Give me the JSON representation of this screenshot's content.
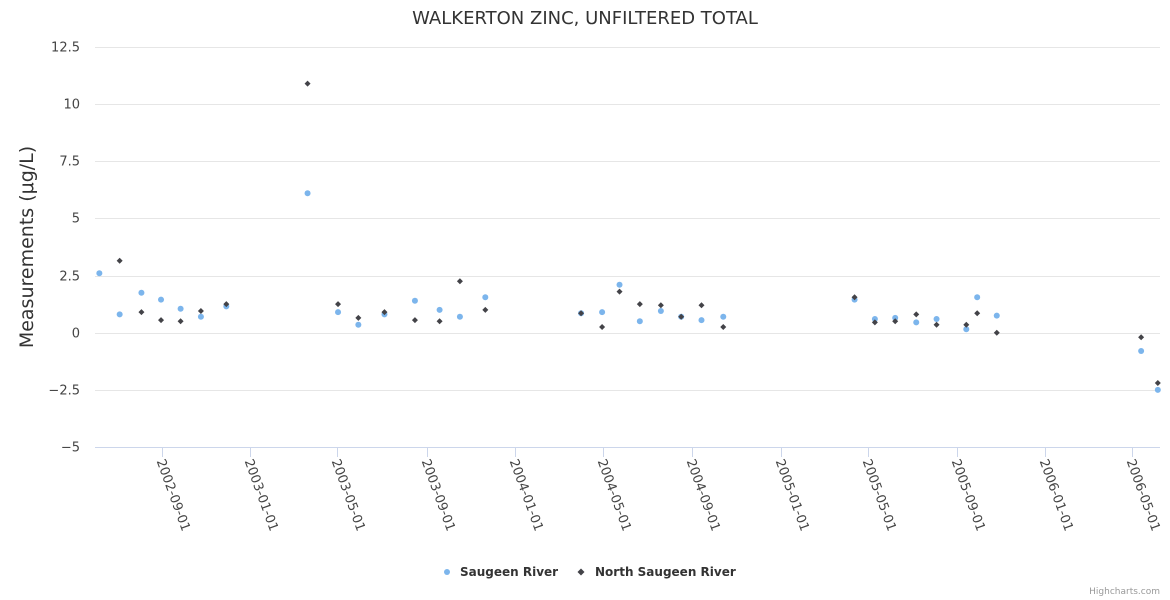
{
  "chart_data": {
    "type": "scatter",
    "title": "WALKERTON ZINC, UNFILTERED TOTAL",
    "ylabel": "Measurements (μg/L)",
    "xlabel": "",
    "ylim": [
      -5,
      12.5
    ],
    "yticks": [
      -5,
      -2.5,
      0,
      2.5,
      5,
      7.5,
      10,
      12.5
    ],
    "ytick_labels": [
      "−5",
      "−2.5",
      "0",
      "2.5",
      "5",
      "7.5",
      "10",
      "12.5"
    ],
    "xlim": [
      "2002-06-01",
      "2006-06-08"
    ],
    "xticks": [
      "2002-09-01",
      "2003-01-01",
      "2003-05-01",
      "2003-09-01",
      "2004-01-01",
      "2004-05-01",
      "2004-09-01",
      "2005-01-01",
      "2005-05-01",
      "2005-09-01",
      "2006-01-01",
      "2006-05-01"
    ],
    "grid": true,
    "legend_position": "bottom-center",
    "series": [
      {
        "name": "Saugeen River",
        "color": "#7cb5ec",
        "marker": "circle",
        "points": [
          {
            "x": "2002-06-07",
            "y": 2.6
          },
          {
            "x": "2002-07-05",
            "y": 0.8
          },
          {
            "x": "2002-08-04",
            "y": 1.75
          },
          {
            "x": "2002-08-31",
            "y": 1.45
          },
          {
            "x": "2002-09-27",
            "y": 1.05
          },
          {
            "x": "2002-10-25",
            "y": 0.7
          },
          {
            "x": "2002-11-29",
            "y": 1.15
          },
          {
            "x": "2003-03-21",
            "y": 6.1
          },
          {
            "x": "2003-05-02",
            "y": 0.9
          },
          {
            "x": "2003-05-30",
            "y": 0.35
          },
          {
            "x": "2003-07-05",
            "y": 0.8
          },
          {
            "x": "2003-08-16",
            "y": 1.4
          },
          {
            "x": "2003-09-19",
            "y": 1.0
          },
          {
            "x": "2003-10-17",
            "y": 0.7
          },
          {
            "x": "2003-11-21",
            "y": 1.55
          },
          {
            "x": "2004-04-01",
            "y": 0.85
          },
          {
            "x": "2004-04-30",
            "y": 0.9
          },
          {
            "x": "2004-05-24",
            "y": 2.1
          },
          {
            "x": "2004-06-21",
            "y": 0.5
          },
          {
            "x": "2004-07-20",
            "y": 0.95
          },
          {
            "x": "2004-08-17",
            "y": 0.7
          },
          {
            "x": "2004-09-14",
            "y": 0.55
          },
          {
            "x": "2004-10-14",
            "y": 0.7
          },
          {
            "x": "2005-04-13",
            "y": 1.45
          },
          {
            "x": "2005-05-11",
            "y": 0.6
          },
          {
            "x": "2005-06-08",
            "y": 0.65
          },
          {
            "x": "2005-07-07",
            "y": 0.45
          },
          {
            "x": "2005-08-04",
            "y": 0.6
          },
          {
            "x": "2005-09-14",
            "y": 0.15
          },
          {
            "x": "2005-09-29",
            "y": 1.55
          },
          {
            "x": "2005-10-26",
            "y": 0.75
          },
          {
            "x": "2006-05-13",
            "y": -0.8
          },
          {
            "x": "2006-06-05",
            "y": -2.5
          }
        ]
      },
      {
        "name": "North Saugeen River",
        "color": "#434348",
        "marker": "diamond",
        "points": [
          {
            "x": "2002-07-05",
            "y": 3.15
          },
          {
            "x": "2002-08-04",
            "y": 0.9
          },
          {
            "x": "2002-08-31",
            "y": 0.55
          },
          {
            "x": "2002-09-27",
            "y": 0.5
          },
          {
            "x": "2002-10-25",
            "y": 0.95
          },
          {
            "x": "2002-11-29",
            "y": 1.25
          },
          {
            "x": "2003-03-21",
            "y": 10.9
          },
          {
            "x": "2003-05-02",
            "y": 1.25
          },
          {
            "x": "2003-05-30",
            "y": 0.65
          },
          {
            "x": "2003-07-05",
            "y": 0.9
          },
          {
            "x": "2003-08-16",
            "y": 0.55
          },
          {
            "x": "2003-09-19",
            "y": 0.5
          },
          {
            "x": "2003-10-17",
            "y": 2.25
          },
          {
            "x": "2003-11-21",
            "y": 1.0
          },
          {
            "x": "2004-04-01",
            "y": 0.85
          },
          {
            "x": "2004-04-30",
            "y": 0.25
          },
          {
            "x": "2004-05-24",
            "y": 1.8
          },
          {
            "x": "2004-06-21",
            "y": 1.25
          },
          {
            "x": "2004-07-20",
            "y": 1.2
          },
          {
            "x": "2004-08-17",
            "y": 0.7
          },
          {
            "x": "2004-09-14",
            "y": 1.2
          },
          {
            "x": "2004-10-14",
            "y": 0.25
          },
          {
            "x": "2005-04-13",
            "y": 1.55
          },
          {
            "x": "2005-05-11",
            "y": 0.45
          },
          {
            "x": "2005-06-08",
            "y": 0.5
          },
          {
            "x": "2005-07-07",
            "y": 0.8
          },
          {
            "x": "2005-08-04",
            "y": 0.35
          },
          {
            "x": "2005-09-14",
            "y": 0.35
          },
          {
            "x": "2005-09-29",
            "y": 0.85
          },
          {
            "x": "2005-10-26",
            "y": 0.0
          },
          {
            "x": "2006-05-13",
            "y": -0.2
          },
          {
            "x": "2006-06-05",
            "y": -2.2
          }
        ]
      }
    ]
  },
  "credits": "Highcharts.com"
}
